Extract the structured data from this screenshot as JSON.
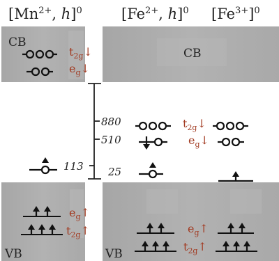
{
  "headers": {
    "col1": {
      "base": "[Mn",
      "sup": "2+",
      "sep": ", ",
      "h": "h",
      "close": "]",
      "charge": "0"
    },
    "col2": {
      "base": "[Fe",
      "sup": "2+",
      "sep": ", ",
      "h": "h",
      "close": "]",
      "charge": "0"
    },
    "col3": {
      "base": "[Fe",
      "sup": "3+",
      "close": "]",
      "charge": "0"
    }
  },
  "bands": {
    "cb_left": "CB",
    "cb_right": "CB",
    "vb_left": "VB",
    "vb_right": "VB"
  },
  "orbitals": {
    "mn_cb_t2g": {
      "base": "t",
      "sub": "2g",
      "spin": "↓"
    },
    "mn_cb_eg": {
      "base": "e",
      "sub": "g",
      "spin": "↓"
    },
    "mn_vb_eg": {
      "base": "e",
      "sub": "g",
      "spin": "↑"
    },
    "mn_vb_t2g": {
      "base": "t",
      "sub": "2g",
      "spin": "↑"
    },
    "fe_gap_t2g": {
      "base": "t",
      "sub": "2g",
      "spin": "↓"
    },
    "fe_gap_eg": {
      "base": "e",
      "sub": "g",
      "spin": "↓"
    },
    "fe_vb_eg": {
      "base": "e",
      "sub": "g",
      "spin": "↑"
    },
    "fe_vb_t2g": {
      "base": "t",
      "sub": "2g",
      "spin": "↑"
    }
  },
  "energies": {
    "e880": "880",
    "e510": "510",
    "e113": "113",
    "e25": "25"
  },
  "colors": {
    "band_fill": "#a9a9a9",
    "orbital_label": "#a23b22",
    "ink": "#222222"
  }
}
